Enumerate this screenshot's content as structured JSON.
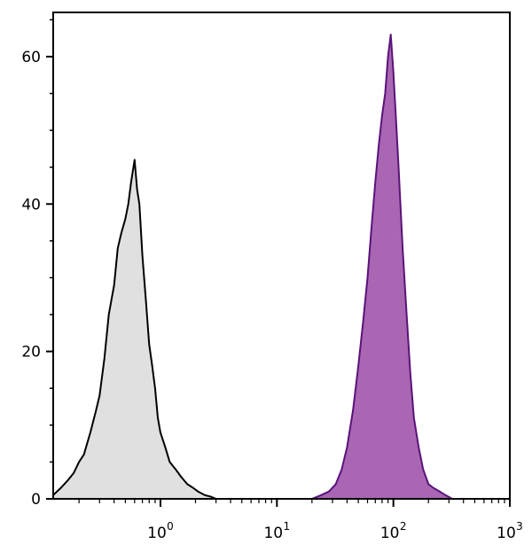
{
  "chart_data": {
    "type": "area",
    "x_scale": "log",
    "xlim": [
      0.12,
      1000
    ],
    "ylim": [
      0,
      66
    ],
    "x_ticks": [
      {
        "value": 1,
        "base": "10",
        "exp": "0"
      },
      {
        "value": 10,
        "base": "10",
        "exp": "1"
      },
      {
        "value": 100,
        "base": "10",
        "exp": "2"
      },
      {
        "value": 1000,
        "base": "10",
        "exp": "3"
      }
    ],
    "y_ticks": [
      {
        "value": 0,
        "label": "0"
      },
      {
        "value": 20,
        "label": "20"
      },
      {
        "value": 40,
        "label": "40"
      },
      {
        "value": 60,
        "label": "60"
      }
    ],
    "grid": false,
    "series": [
      {
        "fill": "#e0e0e0",
        "stroke": "#000000",
        "x": [
          0.12,
          0.14,
          0.16,
          0.18,
          0.2,
          0.22,
          0.25,
          0.28,
          0.3,
          0.33,
          0.36,
          0.4,
          0.43,
          0.46,
          0.5,
          0.53,
          0.56,
          0.6,
          0.63,
          0.66,
          0.7,
          0.75,
          0.8,
          0.85,
          0.9,
          0.95,
          1.0,
          1.1,
          1.2,
          1.35,
          1.5,
          1.7,
          1.9,
          2.1,
          2.4,
          2.7,
          3.0
        ],
        "y": [
          0.5,
          1.5,
          2.5,
          3.5,
          5,
          6,
          9,
          12,
          14,
          19,
          25,
          29,
          34,
          36,
          38,
          40,
          43,
          46,
          42,
          40,
          33,
          27,
          21,
          18,
          15,
          11,
          9,
          7,
          5,
          4,
          3,
          2,
          1.5,
          1,
          0.5,
          0.3,
          0
        ]
      },
      {
        "fill": "#a866b3",
        "stroke": "#5a137a",
        "x": [
          20,
          24,
          28,
          32,
          36,
          40,
          45,
          50,
          55,
          60,
          65,
          70,
          75,
          80,
          85,
          90,
          95,
          100,
          105,
          110,
          115,
          120,
          130,
          140,
          150,
          165,
          180,
          200,
          220,
          250,
          280,
          320
        ],
        "y": [
          0,
          0.5,
          1,
          2,
          4,
          7,
          12,
          18,
          24,
          30,
          37,
          43,
          48,
          52,
          55,
          60,
          63,
          58,
          52,
          46,
          40,
          34,
          25,
          17,
          11,
          7,
          4,
          2,
          1.5,
          1,
          0.5,
          0
        ]
      }
    ]
  }
}
